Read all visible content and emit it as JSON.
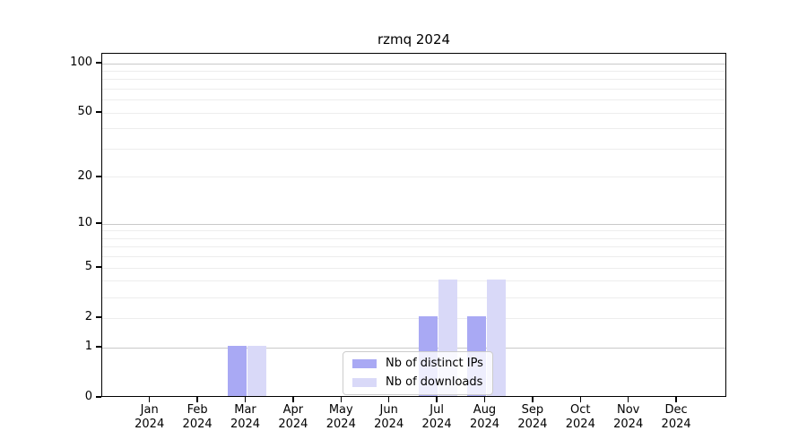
{
  "chart_data": {
    "type": "bar",
    "title": "rzmq 2024",
    "categories": [
      "Jan",
      "Feb",
      "Mar",
      "Apr",
      "May",
      "Jun",
      "Jul",
      "Aug",
      "Sep",
      "Oct",
      "Nov",
      "Dec"
    ],
    "year": "2024",
    "series": [
      {
        "name": "Nb of distinct IPs",
        "color": "#a9a9f4",
        "values": [
          0,
          0,
          1,
          0,
          0,
          0,
          2,
          2,
          0,
          0,
          0,
          0
        ]
      },
      {
        "name": "Nb of downloads",
        "color": "#d9d9f8",
        "values": [
          0,
          0,
          1,
          0,
          0,
          0,
          4,
          4,
          0,
          0,
          0,
          0
        ]
      }
    ],
    "y_axis": {
      "scale": "log1p",
      "ticks": [
        0,
        1,
        2,
        5,
        10,
        20,
        50,
        100
      ],
      "ylim": [
        0,
        115
      ]
    },
    "grid": {
      "major_color": "#c9c9c9",
      "minor_color": "#ededed",
      "major_at": [
        1,
        10,
        100
      ]
    },
    "legend": {
      "position": "lower-center"
    }
  }
}
